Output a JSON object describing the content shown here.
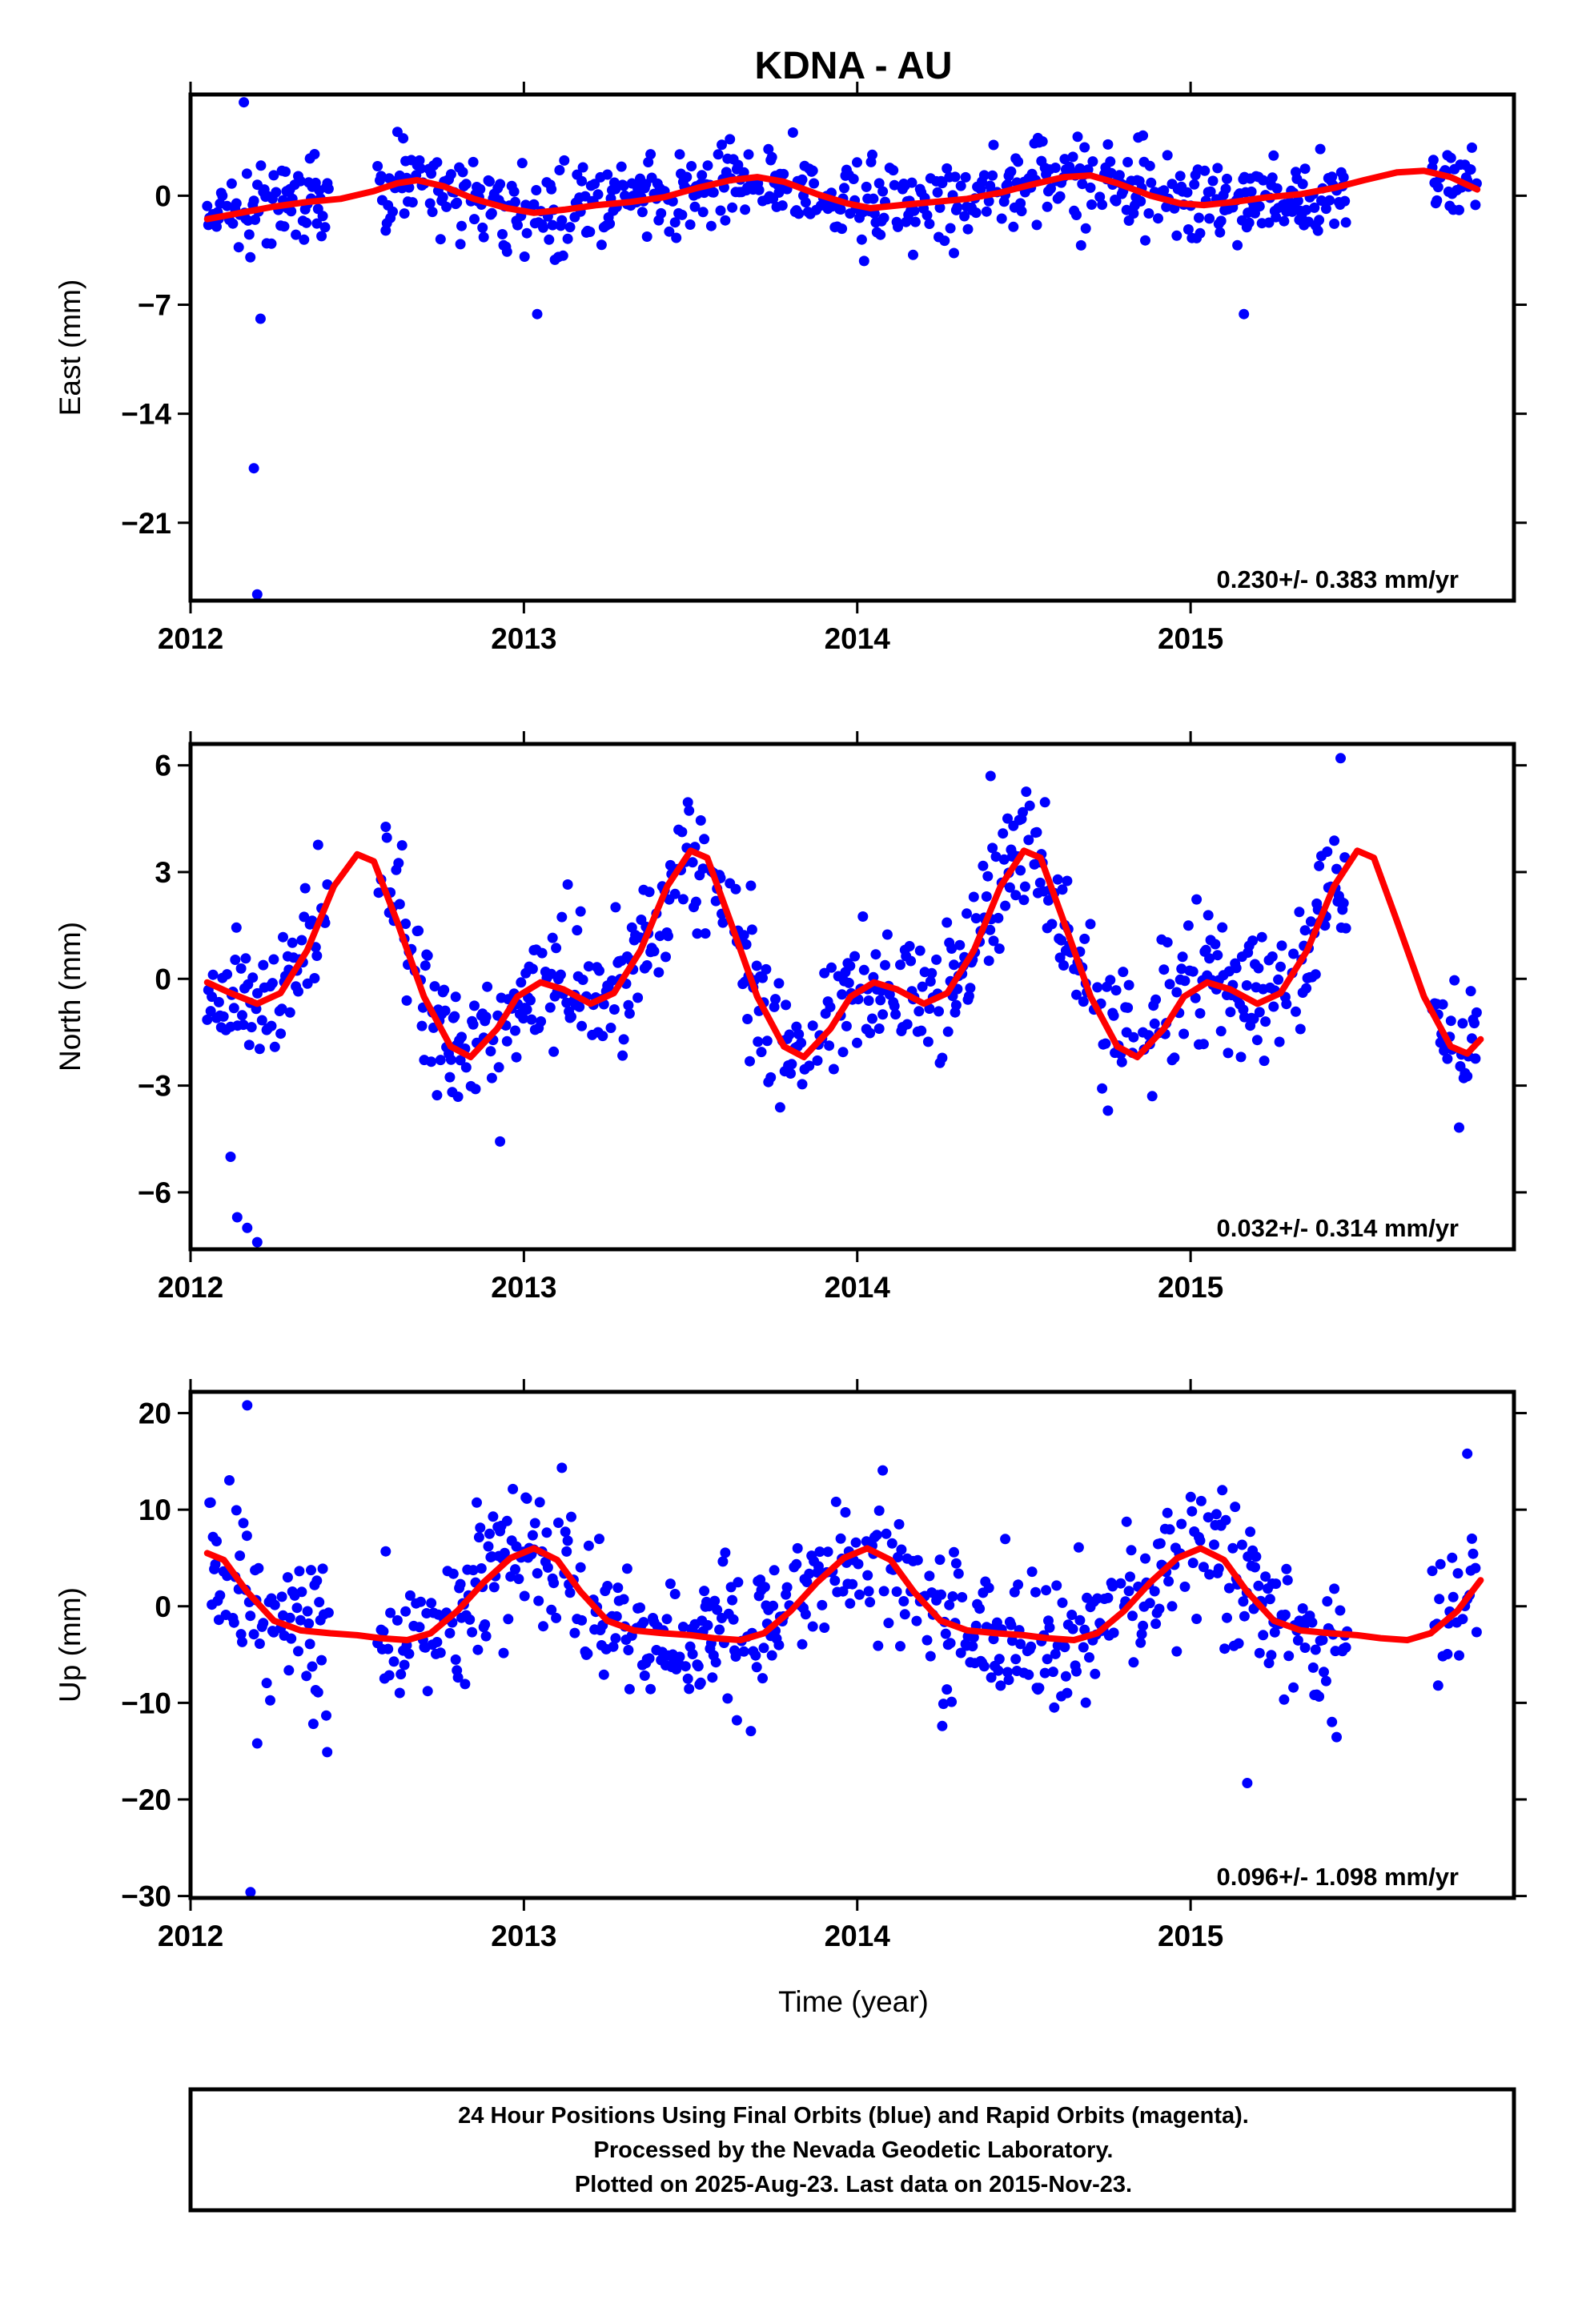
{
  "figure": {
    "title": "KDNA - AU",
    "footer_lines": [
      "24 Hour Positions Using Final Orbits (blue) and Rapid Orbits (magenta).",
      "Processed by the Nevada Geodetic Laboratory.",
      "Plotted on 2025-Aug-23. Last data on 2015-Nov-23."
    ],
    "colors": {
      "points": "#0000ff",
      "model": "#ff0000",
      "frame": "#000000",
      "background": "#ffffff"
    }
  },
  "chart_data": [
    {
      "type": "scatter",
      "title": "KDNA - AU",
      "xlabel": "",
      "ylabel": "East (mm)",
      "xlim": [
        2012.0,
        2015.97
      ],
      "ylim": [
        -26,
        6.5
      ],
      "yticks": [
        0,
        -7,
        -14,
        -21
      ],
      "ytick_labels": [
        "0",
        "−7",
        "−14",
        "−21"
      ],
      "xticks": [
        2012,
        2013,
        2014,
        2015
      ],
      "xtick_labels": [
        "2012",
        "2013",
        "2014",
        "2015"
      ],
      "grid": false,
      "rate_label": "0.230+/- 0.383 mm/yr",
      "gaps": [
        [
          2012.42,
          2012.56
        ],
        [
          2015.47,
          2015.72
        ]
      ],
      "series": [
        {
          "kind": "model",
          "values": [
            [
              2012.05,
              -1.5
            ],
            [
              2012.15,
              -1.1
            ],
            [
              2012.25,
              -0.7
            ],
            [
              2012.35,
              -0.4
            ],
            [
              2012.45,
              -0.2
            ],
            [
              2012.55,
              0.3
            ],
            [
              2012.62,
              0.8
            ],
            [
              2012.68,
              1.0
            ],
            [
              2012.76,
              0.6
            ],
            [
              2012.85,
              -0.2
            ],
            [
              2012.95,
              -0.8
            ],
            [
              2013.03,
              -1.1
            ],
            [
              2013.12,
              -0.9
            ],
            [
              2013.22,
              -0.6
            ],
            [
              2013.32,
              -0.4
            ],
            [
              2013.42,
              -0.1
            ],
            [
              2013.52,
              0.5
            ],
            [
              2013.62,
              1.0
            ],
            [
              2013.7,
              1.2
            ],
            [
              2013.78,
              0.9
            ],
            [
              2013.88,
              0.1
            ],
            [
              2013.97,
              -0.5
            ],
            [
              2014.04,
              -0.8
            ],
            [
              2014.13,
              -0.6
            ],
            [
              2014.23,
              -0.4
            ],
            [
              2014.33,
              -0.2
            ],
            [
              2014.43,
              0.2
            ],
            [
              2014.52,
              0.7
            ],
            [
              2014.62,
              1.2
            ],
            [
              2014.7,
              1.3
            ],
            [
              2014.78,
              0.8
            ],
            [
              2014.88,
              0.0
            ],
            [
              2014.97,
              -0.5
            ],
            [
              2015.04,
              -0.6
            ],
            [
              2015.13,
              -0.4
            ],
            [
              2015.23,
              -0.1
            ],
            [
              2015.33,
              0.1
            ],
            [
              2015.43,
              0.5
            ],
            [
              2015.52,
              1.0
            ],
            [
              2015.62,
              1.5
            ],
            [
              2015.7,
              1.6
            ],
            [
              2015.78,
              1.2
            ],
            [
              2015.86,
              0.4
            ]
          ]
        }
      ]
    },
    {
      "type": "scatter",
      "title": "",
      "xlabel": "",
      "ylabel": "North (mm)",
      "xlim": [
        2012.0,
        2015.97
      ],
      "ylim": [
        -7.6,
        6.6
      ],
      "yticks": [
        6,
        3,
        0,
        -3,
        -6
      ],
      "ytick_labels": [
        "6",
        "3",
        "0",
        "−3",
        "−6"
      ],
      "xticks": [
        2012,
        2013,
        2014,
        2015
      ],
      "xtick_labels": [
        "2012",
        "2013",
        "2014",
        "2015"
      ],
      "grid": false,
      "rate_label": "0.032+/- 0.314 mm/yr",
      "gaps": [
        [
          2012.42,
          2012.56
        ],
        [
          2015.47,
          2015.72
        ]
      ],
      "series": [
        {
          "kind": "model",
          "values": [
            [
              2012.05,
              -0.1
            ],
            [
              2012.12,
              -0.4
            ],
            [
              2012.2,
              -0.7
            ],
            [
              2012.27,
              -0.4
            ],
            [
              2012.35,
              0.8
            ],
            [
              2012.43,
              2.6
            ],
            [
              2012.5,
              3.5
            ],
            [
              2012.55,
              3.3
            ],
            [
              2012.62,
              1.6
            ],
            [
              2012.7,
              -0.5
            ],
            [
              2012.78,
              -1.9
            ],
            [
              2012.84,
              -2.2
            ],
            [
              2012.92,
              -1.4
            ],
            [
              2012.98,
              -0.5
            ],
            [
              2013.05,
              -0.1
            ],
            [
              2013.12,
              -0.3
            ],
            [
              2013.2,
              -0.7
            ],
            [
              2013.27,
              -0.4
            ],
            [
              2013.35,
              0.8
            ],
            [
              2013.43,
              2.6
            ],
            [
              2013.5,
              3.6
            ],
            [
              2013.55,
              3.4
            ],
            [
              2013.62,
              1.6
            ],
            [
              2013.7,
              -0.5
            ],
            [
              2013.78,
              -1.9
            ],
            [
              2013.84,
              -2.2
            ],
            [
              2013.92,
              -1.4
            ],
            [
              2013.98,
              -0.5
            ],
            [
              2014.05,
              -0.1
            ],
            [
              2014.12,
              -0.3
            ],
            [
              2014.2,
              -0.7
            ],
            [
              2014.27,
              -0.4
            ],
            [
              2014.35,
              0.8
            ],
            [
              2014.43,
              2.6
            ],
            [
              2014.5,
              3.6
            ],
            [
              2014.55,
              3.4
            ],
            [
              2014.62,
              1.6
            ],
            [
              2014.7,
              -0.5
            ],
            [
              2014.78,
              -1.9
            ],
            [
              2014.84,
              -2.2
            ],
            [
              2014.92,
              -1.4
            ],
            [
              2014.98,
              -0.5
            ],
            [
              2015.05,
              -0.1
            ],
            [
              2015.12,
              -0.3
            ],
            [
              2015.2,
              -0.7
            ],
            [
              2015.27,
              -0.4
            ],
            [
              2015.35,
              0.8
            ],
            [
              2015.43,
              2.6
            ],
            [
              2015.5,
              3.6
            ],
            [
              2015.55,
              3.4
            ],
            [
              2015.62,
              1.6
            ],
            [
              2015.7,
              -0.5
            ],
            [
              2015.78,
              -1.9
            ],
            [
              2015.83,
              -2.1
            ],
            [
              2015.87,
              -1.7
            ]
          ]
        }
      ]
    },
    {
      "type": "scatter",
      "title": "",
      "xlabel": "Time (year)",
      "ylabel": "Up (mm)",
      "xlim": [
        2012.0,
        2015.97
      ],
      "ylim": [
        -30.2,
        22.2
      ],
      "yticks": [
        20,
        10,
        0,
        -10,
        -20,
        -30
      ],
      "ytick_labels": [
        "20",
        "10",
        "0",
        "−10",
        "−20",
        "−30"
      ],
      "xticks": [
        2012,
        2013,
        2014,
        2015
      ],
      "xtick_labels": [
        "2012",
        "2013",
        "2014",
        "2015"
      ],
      "grid": false,
      "rate_label": "0.096+/- 1.098 mm/yr",
      "gaps": [
        [
          2012.42,
          2012.56
        ],
        [
          2015.47,
          2015.72
        ]
      ],
      "series": [
        {
          "kind": "model",
          "values": [
            [
              2012.05,
              5.5
            ],
            [
              2012.1,
              4.8
            ],
            [
              2012.17,
              1.5
            ],
            [
              2012.25,
              -1.5
            ],
            [
              2012.33,
              -2.5
            ],
            [
              2012.42,
              -2.8
            ],
            [
              2012.5,
              -3.0
            ],
            [
              2012.57,
              -3.3
            ],
            [
              2012.65,
              -3.5
            ],
            [
              2012.72,
              -2.8
            ],
            [
              2012.8,
              -0.5
            ],
            [
              2012.88,
              2.5
            ],
            [
              2012.96,
              5.0
            ],
            [
              2013.03,
              6.0
            ],
            [
              2013.1,
              4.8
            ],
            [
              2013.17,
              1.5
            ],
            [
              2013.25,
              -1.5
            ],
            [
              2013.33,
              -2.5
            ],
            [
              2013.42,
              -2.8
            ],
            [
              2013.5,
              -3.0
            ],
            [
              2013.57,
              -3.3
            ],
            [
              2013.65,
              -3.5
            ],
            [
              2013.72,
              -2.8
            ],
            [
              2013.8,
              -0.5
            ],
            [
              2013.88,
              2.5
            ],
            [
              2013.96,
              5.0
            ],
            [
              2014.03,
              6.0
            ],
            [
              2014.1,
              4.8
            ],
            [
              2014.17,
              1.5
            ],
            [
              2014.25,
              -1.5
            ],
            [
              2014.33,
              -2.5
            ],
            [
              2014.42,
              -2.8
            ],
            [
              2014.5,
              -3.0
            ],
            [
              2014.57,
              -3.3
            ],
            [
              2014.65,
              -3.5
            ],
            [
              2014.72,
              -2.8
            ],
            [
              2014.8,
              -0.5
            ],
            [
              2014.88,
              2.5
            ],
            [
              2014.96,
              5.0
            ],
            [
              2015.03,
              6.0
            ],
            [
              2015.1,
              4.8
            ],
            [
              2015.17,
              1.5
            ],
            [
              2015.25,
              -1.5
            ],
            [
              2015.33,
              -2.5
            ],
            [
              2015.42,
              -2.8
            ],
            [
              2015.5,
              -3.0
            ],
            [
              2015.57,
              -3.3
            ],
            [
              2015.65,
              -3.5
            ],
            [
              2015.72,
              -2.8
            ],
            [
              2015.8,
              -0.5
            ],
            [
              2015.87,
              2.7
            ]
          ]
        }
      ]
    }
  ]
}
